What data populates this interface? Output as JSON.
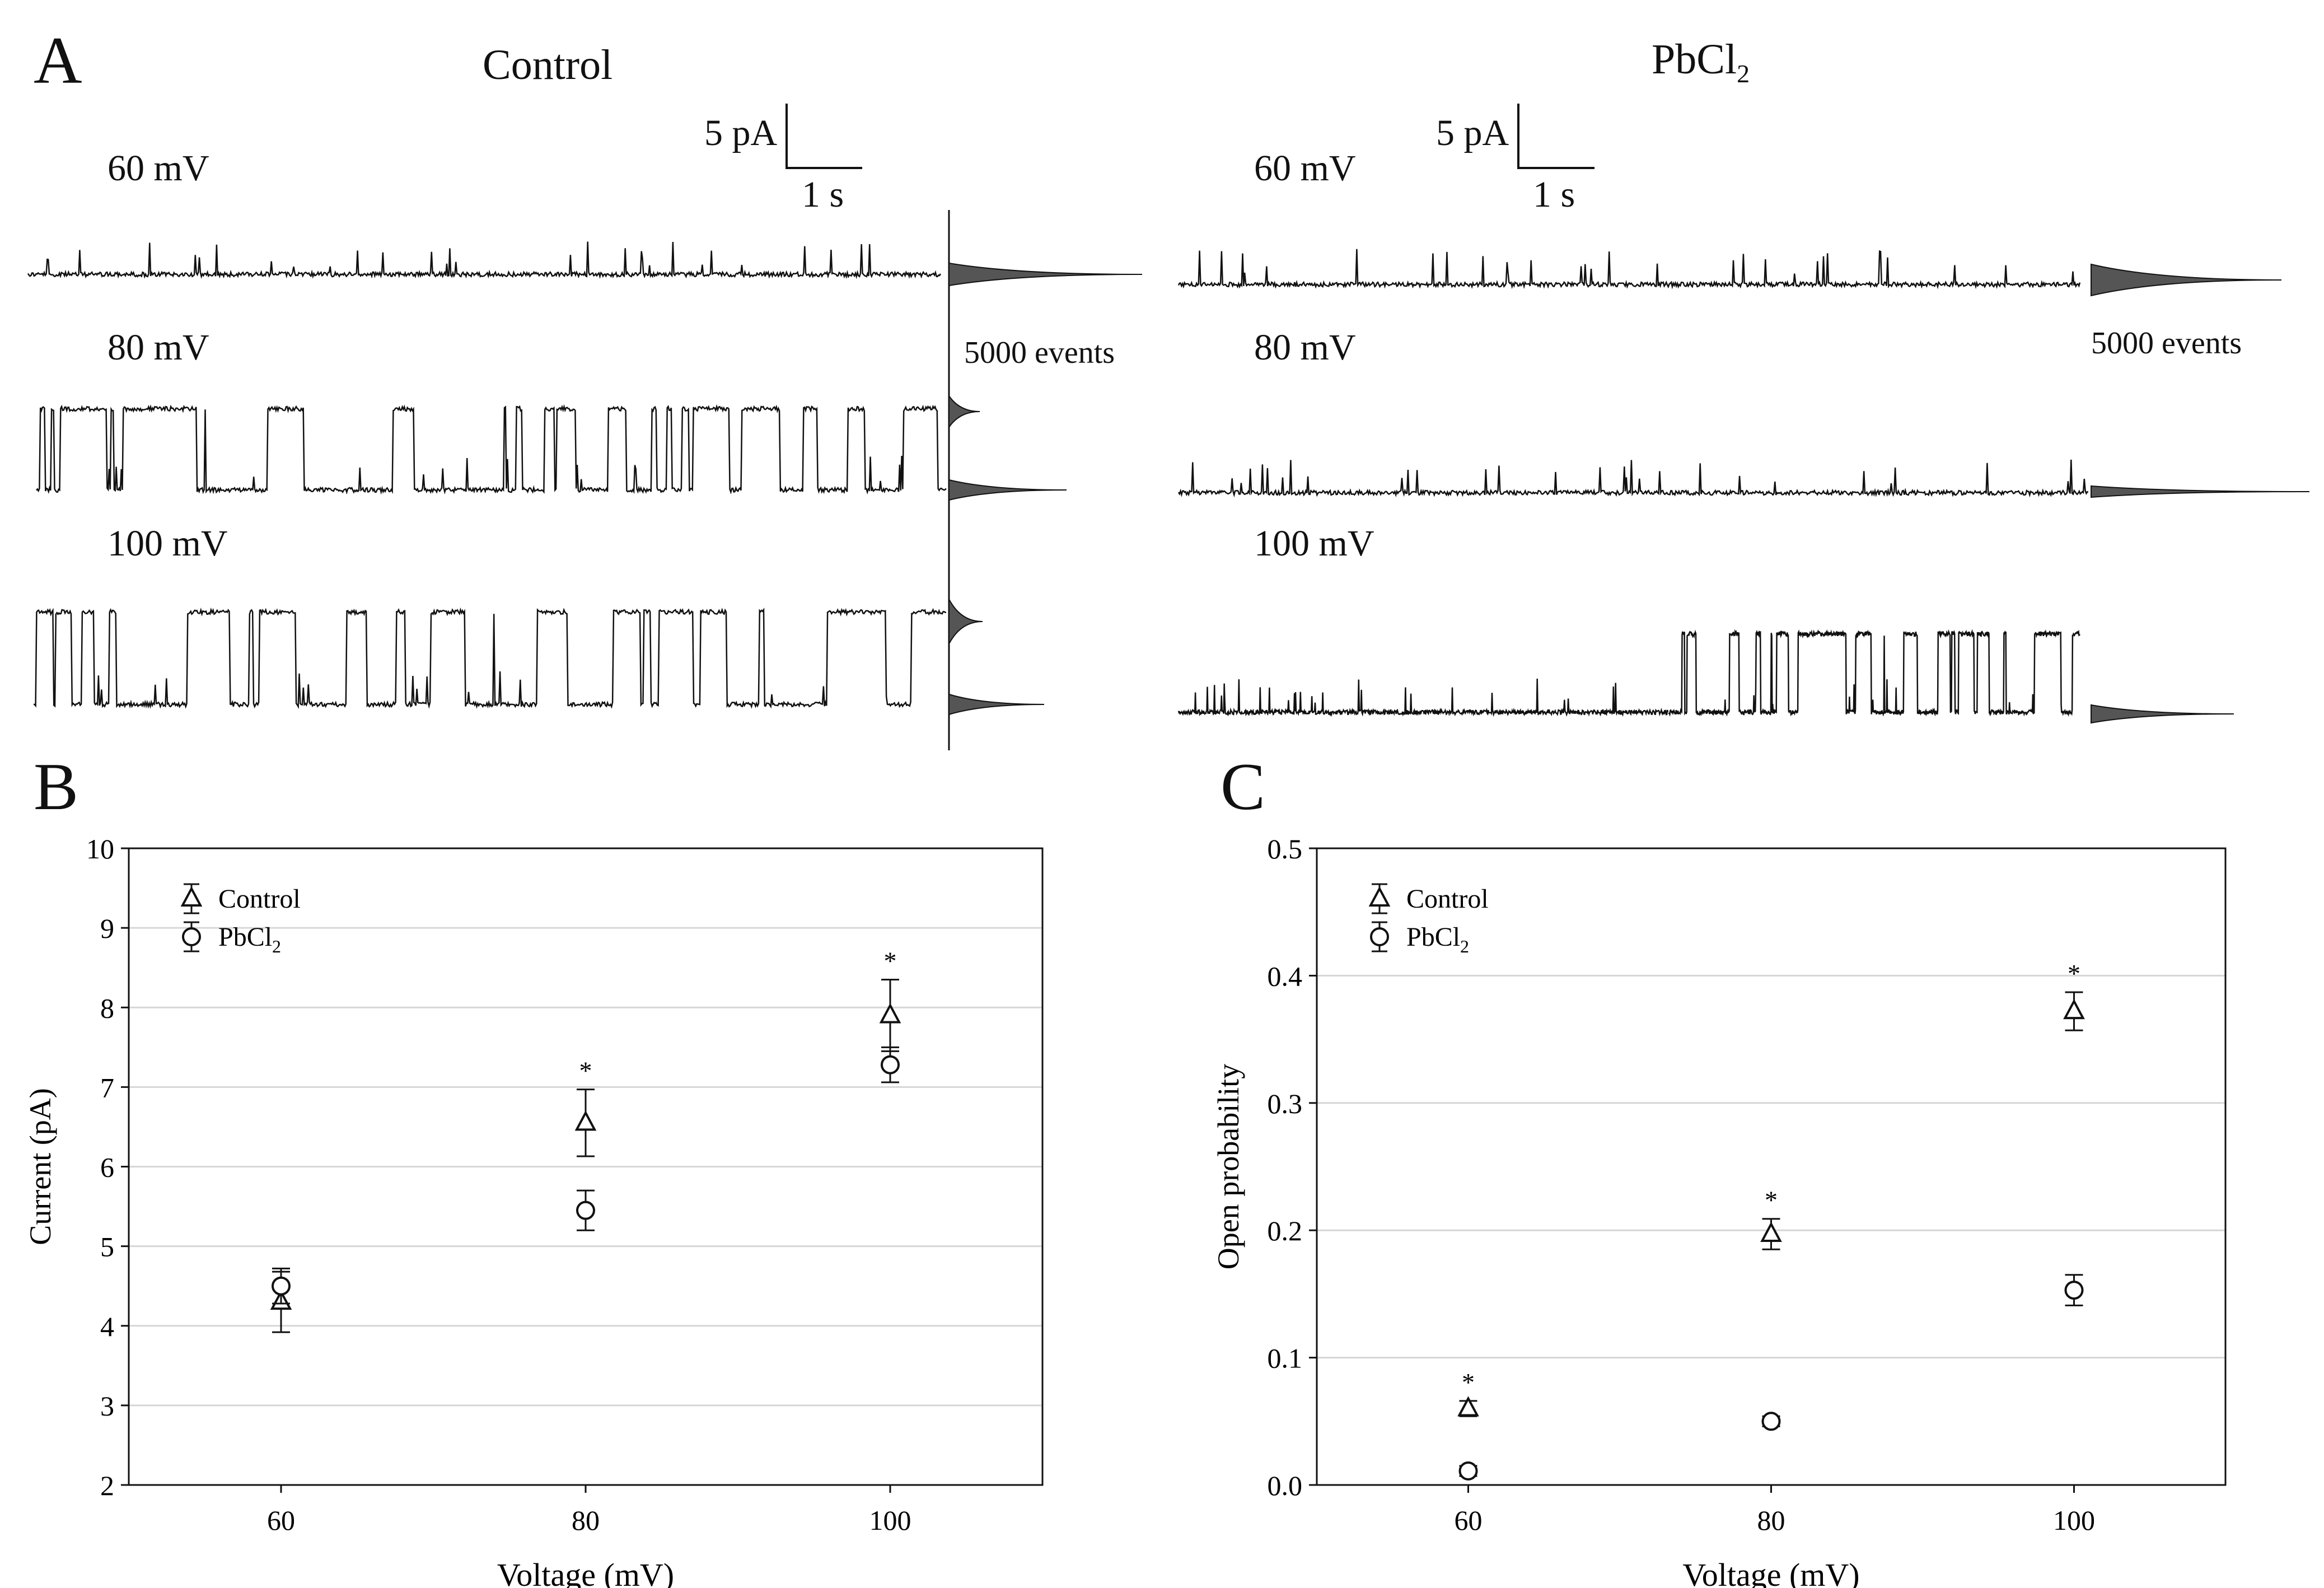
{
  "panel_a": {
    "label": "A",
    "control": {
      "title": "Control",
      "scalebar_current": "5 pA",
      "scalebar_time": "1 s",
      "histogram_label": "5000 events",
      "traces": [
        {
          "voltage": "60 mV",
          "open_probability": 0.06
        },
        {
          "voltage": "80 mV",
          "open_probability": 0.2
        },
        {
          "voltage": "100 mV",
          "open_probability": 0.37
        }
      ]
    },
    "pbcl2": {
      "title_main": "PbCl",
      "title_sub": "2",
      "scalebar_current": "5 pA",
      "scalebar_time": "1 s",
      "histogram_label": "5000 events",
      "traces": [
        {
          "voltage": "60 mV",
          "open_probability": 0.01
        },
        {
          "voltage": "80 mV",
          "open_probability": 0.05
        },
        {
          "voltage": "100 mV",
          "open_probability": 0.15
        }
      ]
    }
  },
  "panel_b": {
    "label": "B"
  },
  "panel_c": {
    "label": "C"
  },
  "chart_data": [
    {
      "type": "scatter",
      "panel": "B",
      "xlabel": "Voltage (mV)",
      "ylabel": "Current (pA)",
      "categories": [
        "60",
        "80",
        "100"
      ],
      "x": [
        60,
        80,
        100
      ],
      "xlim": [
        50,
        110
      ],
      "ylim": [
        2,
        10
      ],
      "yticks": [
        "2",
        "3",
        "4",
        "5",
        "6",
        "7",
        "8",
        "9",
        "10"
      ],
      "grid": true,
      "legend_position": "top-left",
      "series": [
        {
          "name": "Control",
          "name_sub": "",
          "marker": "triangle",
          "values": [
            4.3,
            6.55,
            7.9
          ],
          "errors": [
            0.38,
            0.42,
            0.45
          ]
        },
        {
          "name": "PbCl",
          "name_sub": "2",
          "marker": "circle",
          "values": [
            4.5,
            5.45,
            7.28
          ],
          "errors": [
            0.22,
            0.25,
            0.22
          ]
        }
      ],
      "significance_marker": "*",
      "significant": [
        false,
        true,
        true
      ]
    },
    {
      "type": "scatter",
      "panel": "C",
      "xlabel": "Voltage (mV)",
      "ylabel": "Open probability",
      "categories": [
        "60",
        "80",
        "100"
      ],
      "x": [
        60,
        80,
        100
      ],
      "xlim": [
        50,
        110
      ],
      "ylim": [
        0,
        0.5
      ],
      "yticks": [
        "0.0",
        "0.1",
        "0.2",
        "0.3",
        "0.4",
        "0.5"
      ],
      "grid": true,
      "legend_position": "top-left",
      "series": [
        {
          "name": "Control",
          "name_sub": "",
          "marker": "triangle",
          "values": [
            0.06,
            0.197,
            0.372
          ],
          "errors": [
            0.006,
            0.012,
            0.015
          ]
        },
        {
          "name": "PbCl",
          "name_sub": "2",
          "marker": "circle",
          "values": [
            0.011,
            0.05,
            0.153
          ],
          "errors": [
            0.004,
            0.004,
            0.012
          ]
        }
      ],
      "significance_marker": "*",
      "significant": [
        true,
        true,
        true
      ]
    }
  ]
}
